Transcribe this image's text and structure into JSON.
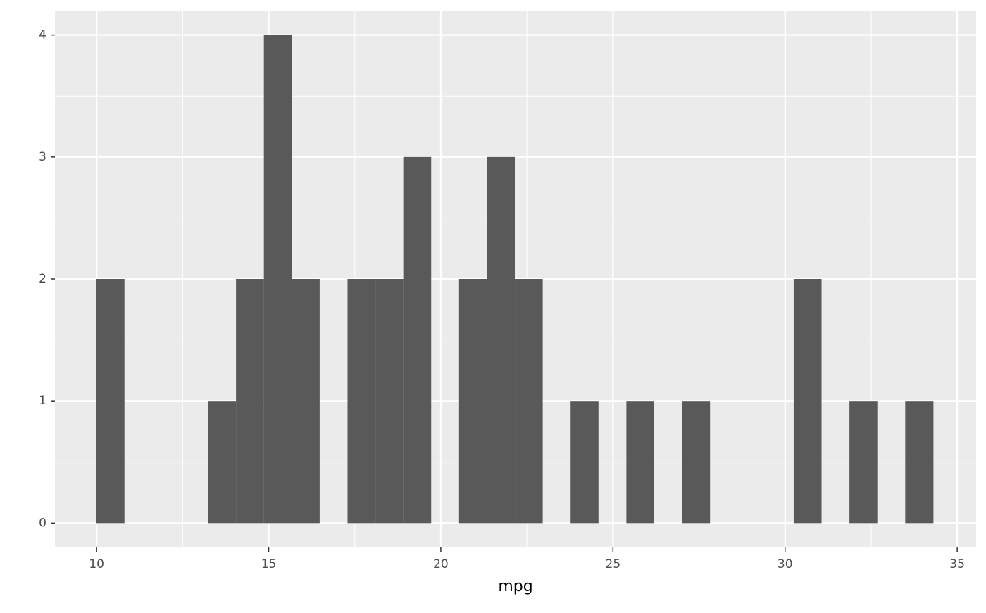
{
  "chart_data": {
    "type": "histogram",
    "x_label": "mpg",
    "bins": [
      9.99,
      10.81,
      11.62,
      12.43,
      13.24,
      14.05,
      14.86,
      15.67,
      16.48,
      17.29,
      18.1,
      18.91,
      19.72,
      20.53,
      21.34,
      22.15,
      22.96,
      23.77,
      24.58,
      25.39,
      26.2,
      27.01,
      27.82,
      28.63,
      29.44,
      30.25,
      31.06,
      31.87,
      32.68,
      33.49,
      34.31
    ],
    "values": [
      2,
      0,
      0,
      0,
      1,
      2,
      4,
      2,
      0,
      2,
      2,
      3,
      0,
      2,
      3,
      2,
      0,
      1,
      0,
      1,
      0,
      1,
      0,
      0,
      0,
      2,
      0,
      1,
      0,
      1
    ],
    "color": "#595959",
    "xlim": [
      8.79,
      35.55
    ],
    "xticks": [
      10,
      15,
      20,
      25,
      30,
      35
    ],
    "ylim": [
      -0.2,
      4.2
    ],
    "yticks": [
      0,
      1,
      2,
      3,
      4
    ],
    "grid": true
  }
}
